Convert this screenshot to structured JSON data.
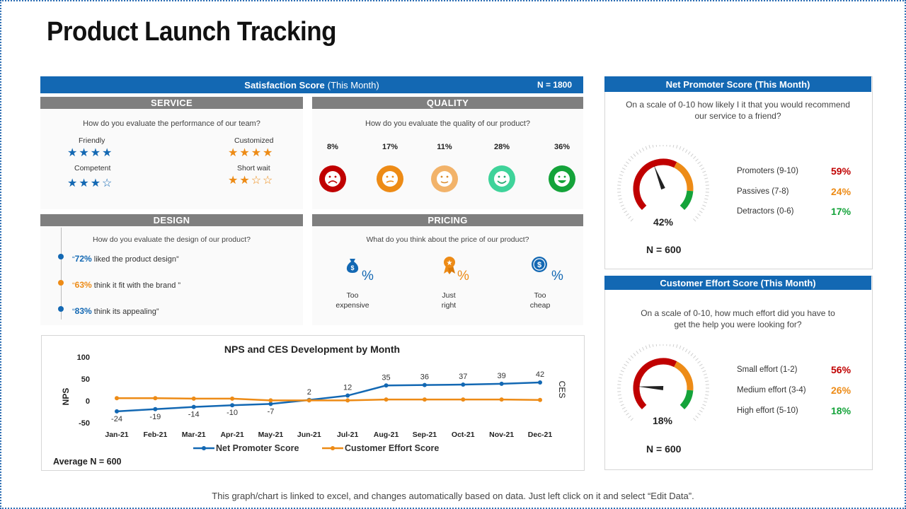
{
  "title": "Product Launch Tracking",
  "satisfaction": {
    "header_bold": "Satisfaction Score",
    "header_rest": "(This Month)",
    "n": "N = 1800",
    "service": {
      "title": "SERVICE",
      "question": "How do you evaluate the performance of our team?",
      "items": [
        {
          "label": "Friendly",
          "stars": "★★★★",
          "rating": 4
        },
        {
          "label": "Customized",
          "stars": "★★★★",
          "rating": 4
        },
        {
          "label": "Competent",
          "stars": "★★★☆",
          "rating": 3
        },
        {
          "label": "Short wait",
          "stars": "★★☆☆",
          "rating": 2
        }
      ]
    },
    "quality": {
      "title": "QUALITY",
      "question": "How do you evaluate the quality  of our product?",
      "items": [
        {
          "pct": "8%",
          "color": "#c00000"
        },
        {
          "pct": "17%",
          "color": "#ed8b16"
        },
        {
          "pct": "11%",
          "color": "#f2b36a"
        },
        {
          "pct": "28%",
          "color": "#3fd39a"
        },
        {
          "pct": "36%",
          "color": "#14a33a"
        }
      ]
    },
    "design": {
      "title": "DESIGN",
      "question": "How do you evaluate the design of our product?",
      "items": [
        {
          "open": "“",
          "pct": "72%",
          "text": " liked  the product design”",
          "color": "#1368b3"
        },
        {
          "open": "“",
          "pct": "63%",
          "text": " think  it fit with the brand ”",
          "color": "#ed8b16"
        },
        {
          "open": "“",
          "pct": "83%",
          "text": " think  its  appealing”",
          "color": "#1368b3"
        }
      ]
    },
    "pricing": {
      "title": "PRICING",
      "question": "What do you think about the price of our product?",
      "items": [
        {
          "symbol": "%",
          "line1": "Too",
          "line2": "expensive",
          "color": "#1368b3",
          "icon": "money-bag-icon"
        },
        {
          "symbol": "%",
          "line1": "Just",
          "line2": "right",
          "color": "#ed8b16",
          "icon": "medal-icon"
        },
        {
          "symbol": "%",
          "line1": "Too",
          "line2": "cheap",
          "color": "#1368b3",
          "icon": "dollar-coin-icon"
        }
      ]
    }
  },
  "nps": {
    "header": "Net Promoter Score (This Month)",
    "question_l1": "On a scale of 0-10 how likely I it that you would recommend",
    "question_l2": "our service  to a friend?",
    "gauge_value": "42%",
    "gauge_fraction": 0.42,
    "n": "N = 600",
    "rows": [
      {
        "label": "Promoters (9-10)",
        "value": "59%",
        "color": "#c00000"
      },
      {
        "label": "Passives (7-8)",
        "value": "24%",
        "color": "#ed8b16"
      },
      {
        "label": "Detractors (0-6)",
        "value": "17%",
        "color": "#14a33a"
      }
    ]
  },
  "ces": {
    "header": "Customer Effort Score (This Month)",
    "question_l1": "On a scale of 0-10, how much effort did you have to",
    "question_l2": "get the help you were looking for?",
    "gauge_value": "18%",
    "gauge_fraction": 0.18,
    "n": "N = 600",
    "rows": [
      {
        "label": "Small effort  (1-2)",
        "value": "56%",
        "color": "#c00000"
      },
      {
        "label": "Medium effort  (3-4)",
        "value": "26%",
        "color": "#ed8b16"
      },
      {
        "label": "High effort  (5-10)",
        "value": "18%",
        "color": "#14a33a"
      }
    ]
  },
  "chart_data": {
    "type": "line",
    "title": "NPS and CES Development by Month",
    "ylabel": "NPS",
    "y2label": "CES",
    "ylim": [
      -50,
      100
    ],
    "yticks": [
      "100",
      "50",
      "0",
      "-50"
    ],
    "categories": [
      "Jan-21",
      "Feb-21",
      "Mar-21",
      "Apr-21",
      "May-21",
      "Jun-21",
      "Jul-21",
      "Aug-21",
      "Sep-21",
      "Oct-21",
      "Nov-21",
      "Dec-21"
    ],
    "series": [
      {
        "name": "Net Promoter Score",
        "color": "#1368b3",
        "values": [
          -24,
          -19,
          -14,
          -10,
          -7,
          2,
          12,
          35,
          36,
          37,
          39,
          42
        ],
        "labels": [
          "-24",
          "-19",
          "-14",
          "-10",
          "-7",
          "2",
          "12",
          "35",
          "36",
          "37",
          "39",
          "42"
        ]
      },
      {
        "name": "Customer Effort Score",
        "color": "#ed8b16",
        "values": [
          6,
          6,
          5,
          5,
          1,
          1,
          1,
          3,
          3,
          3,
          3,
          2
        ]
      }
    ],
    "legend": "bottom",
    "note": "Average N = 600"
  },
  "footer": "This graph/chart is linked to excel, and changes automatically based on data. Just left click on it and select “Edit Data”."
}
